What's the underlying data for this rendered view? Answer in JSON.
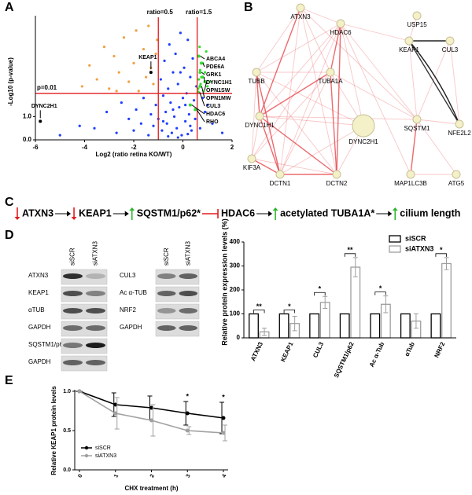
{
  "panel_labels": [
    "A",
    "B",
    "C",
    "D",
    "E"
  ],
  "chart_data": [
    {
      "type": "scatter",
      "xlabel": "Log2 (ratio retina KO/WT)",
      "ylabel": "-Log10 (p-value)",
      "xlim": [
        -6,
        2
      ],
      "xticks": [
        -6,
        -4,
        -2,
        0,
        2
      ],
      "ylim": [
        0,
        5
      ],
      "yticks": [
        {
          "value": 0,
          "label": "0.0"
        },
        {
          "value": 1,
          "label": "1.0"
        }
      ],
      "reference_lines": [
        {
          "axis": "x",
          "value": -1,
          "label": "ratio=0.5",
          "color": "#e31a1c"
        },
        {
          "axis": "x",
          "value": 0.58,
          "label": "ratio=1.5",
          "color": "#e31a1c"
        },
        {
          "axis": "y",
          "value": 2,
          "label": "p=0.01",
          "color": "#e31a1c"
        }
      ],
      "series": [
        {
          "color": "#1f3fff",
          "x": [
            -3.6,
            -3.1,
            -2.7,
            -2.5,
            -2.2,
            -2.0,
            -1.9,
            -1.7,
            -1.6,
            -1.4,
            -1.3,
            -1.2,
            -1.1,
            -1.0,
            -0.9,
            -0.85,
            -0.8,
            -0.75,
            -0.7,
            -0.65,
            -0.6,
            -0.55,
            -0.5,
            -0.45,
            -0.4,
            -0.35,
            -0.3,
            -0.25,
            -0.2,
            -0.15,
            -0.1,
            -0.05,
            0.0,
            0.05,
            0.1,
            0.15,
            0.2,
            0.25,
            0.3,
            0.35,
            0.4,
            0.45,
            0.5,
            0.55,
            -0.6,
            -0.2,
            0.2,
            -0.4,
            0.1,
            -0.8,
            0.3,
            0.7,
            0.9,
            1.2,
            1.6,
            0.8,
            -4.2,
            -5.0,
            1.0,
            -0.1
          ],
          "y": [
            0.5,
            1.2,
            0.3,
            1.6,
            0.9,
            0.4,
            1.3,
            0.7,
            1.8,
            0.2,
            1.1,
            0.6,
            1.5,
            0.9,
            2.6,
            0.4,
            1.9,
            3.4,
            1.2,
            0.7,
            2.2,
            4.1,
            1.6,
            0.3,
            2.9,
            1.0,
            3.7,
            0.5,
            2.4,
            1.4,
            4.6,
            0.2,
            1.8,
            3.1,
            0.8,
            2.0,
            4.3,
            1.1,
            2.7,
            0.4,
            3.5,
            1.7,
            0.9,
            2.3,
            0.15,
            0.1,
            0.25,
            1.3,
            1.5,
            0.8,
            0.6,
            0.5,
            1.2,
            0.7,
            0.3,
            1.8,
            0.6,
            0.2,
            1.5,
            2.9
          ]
        },
        {
          "color": "#f0a040",
          "x": [
            -4.1,
            -3.8,
            -3.5,
            -3.2,
            -3.0,
            -2.8,
            -2.6,
            -2.4,
            -2.2,
            -2.0,
            -1.9,
            -1.8,
            -1.6,
            -1.5,
            -1.4,
            -1.3,
            -1.2,
            -1.1,
            -1.05,
            -2.7
          ],
          "y": [
            2.3,
            3.2,
            2.6,
            4.0,
            2.2,
            3.6,
            2.9,
            4.4,
            2.5,
            3.3,
            4.7,
            2.1,
            3.9,
            2.7,
            4.9,
            3.1,
            2.4,
            3.7,
            4.3,
            2.1
          ]
        },
        {
          "color": "#33dd33",
          "x": [
            0.62,
            0.65,
            0.7,
            0.72,
            0.8,
            0.85,
            0.9,
            0.95,
            1.0,
            0.68,
            0.75,
            1.1
          ],
          "y": [
            2.2,
            2.6,
            3.0,
            2.4,
            3.3,
            2.1,
            2.9,
            3.8,
            2.3,
            4.0,
            2.7,
            2.5
          ]
        },
        {
          "color": "#000000",
          "x": [
            -1.3,
            -5.8
          ],
          "y": [
            2.9,
            0.8
          ],
          "point_labels": [
            "KEAP1",
            "DYNC2H1"
          ]
        },
        {
          "color": "#33dd33",
          "x": [
            0.65,
            0.75,
            0.7,
            0.8,
            0.9,
            0.7,
            0.62,
            0.3,
            0.5
          ],
          "y": [
            3.6,
            3.3,
            2.9,
            2.7,
            2.5,
            2.3,
            2.05,
            1.5,
            1.3
          ],
          "point_labels": [
            "ABCA4",
            "PDE6A",
            "GRK1",
            "DYNC1H1",
            "OPN1SW",
            "OPN1MW",
            "CUL3",
            "HDAC6",
            "RHO"
          ]
        }
      ]
    },
    {
      "type": "bar",
      "ylabel": "Relative protein expression levels (%)",
      "categories": [
        "ATXN3",
        "KEAP1",
        "CUL3",
        "SQSTM1/p62",
        "Ac α-Tub",
        "αTub",
        "NRF2"
      ],
      "ylim": [
        0,
        400
      ],
      "yticks": [
        0,
        100,
        200,
        300,
        400
      ],
      "legend": "upper right",
      "series": [
        {
          "name": "siSCR",
          "color": "#000000",
          "values": [
            100,
            100,
            100,
            100,
            100,
            100,
            100
          ]
        },
        {
          "name": "siATXN3",
          "color": "#9e9e9e",
          "values": [
            25,
            60,
            148,
            295,
            140,
            70,
            310
          ],
          "errors": [
            15,
            30,
            25,
            40,
            35,
            30,
            25
          ]
        }
      ],
      "significance": [
        "**",
        "*",
        "*",
        "**",
        "*",
        null,
        "*"
      ]
    },
    {
      "type": "line",
      "xlabel": "CHX treatment (h)",
      "ylabel": "Relative KEAP1 protein levels",
      "x": [
        0,
        1,
        2,
        3,
        4
      ],
      "xlim": [
        0,
        4
      ],
      "xticks": [
        0,
        1,
        2,
        3,
        4
      ],
      "ylim": [
        0,
        1
      ],
      "yticks": [
        {
          "value": 0,
          "label": "0.0"
        },
        {
          "value": 0.5,
          "label": "0.5"
        },
        {
          "value": 1,
          "label": "1.0"
        }
      ],
      "legend": "lower left",
      "series": [
        {
          "name": "siSCR",
          "color": "#000000",
          "values": [
            1,
            0.83,
            0.79,
            0.72,
            0.66
          ],
          "errors": [
            0,
            0.15,
            0.15,
            0.15,
            0.2
          ]
        },
        {
          "name": "siATXN3",
          "color": "#a0a0a0",
          "values": [
            1,
            0.72,
            0.63,
            0.5,
            0.47
          ],
          "errors": [
            0,
            0.2,
            0.2,
            0.05,
            0.1
          ]
        }
      ],
      "significance": [
        null,
        null,
        null,
        "*",
        "*"
      ]
    }
  ],
  "network": {
    "nodes": [
      "ATXN3",
      "HDAC6",
      "USP15",
      "KEAP1",
      "CUL3",
      "TUBB",
      "TUBA1A",
      "DYNC1H1",
      "DYNC2H1",
      "SQSTM1",
      "NFE2L2",
      "KIF3A",
      "DCTN1",
      "DCTN2",
      "MAP1LC3B",
      "ATG5"
    ]
  },
  "pathway": {
    "steps": [
      "ATXN3",
      "KEAP1",
      "SQSTM1/p62*",
      "HDAC6",
      "acetylated TUBA1A*",
      "cilium length"
    ]
  },
  "blots": {
    "groups": [
      {
        "columns": [
          "siSCR",
          "siATXN3"
        ],
        "rows": [
          "ATXN3",
          "KEAP1",
          "αTUB",
          "GAPDH",
          "SQSTM1/p62",
          "GAPDH"
        ]
      },
      {
        "columns": [
          "siSCR",
          "siATXN3"
        ],
        "rows": [
          "CUL3",
          "Ac α-TUB",
          "NRF2",
          "GAPDH"
        ]
      }
    ]
  }
}
